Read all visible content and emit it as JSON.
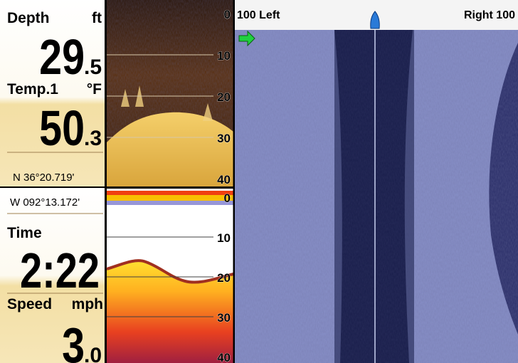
{
  "readouts": {
    "depth": {
      "label": "Depth",
      "unit": "ft",
      "whole": "29",
      "fraction": ".5"
    },
    "temp": {
      "label": "Temp.1",
      "unit": "°F",
      "whole": "50",
      "fraction": ".3"
    },
    "latitude": "N 36°20.719'",
    "longitude": "W 092°13.172'",
    "time": {
      "label": "Time",
      "value": "2:22"
    },
    "speed": {
      "label": "Speed",
      "unit": "mph",
      "whole": "3",
      "fraction": ".0"
    }
  },
  "down_imaging": {
    "depth_scale": [
      "0",
      "10",
      "20",
      "30",
      "40"
    ]
  },
  "sonar_2d": {
    "depth_scale": [
      "0",
      "10",
      "20",
      "30",
      "40"
    ]
  },
  "side_imaging": {
    "left_range": "100 Left",
    "right_range": "Right 100"
  }
}
